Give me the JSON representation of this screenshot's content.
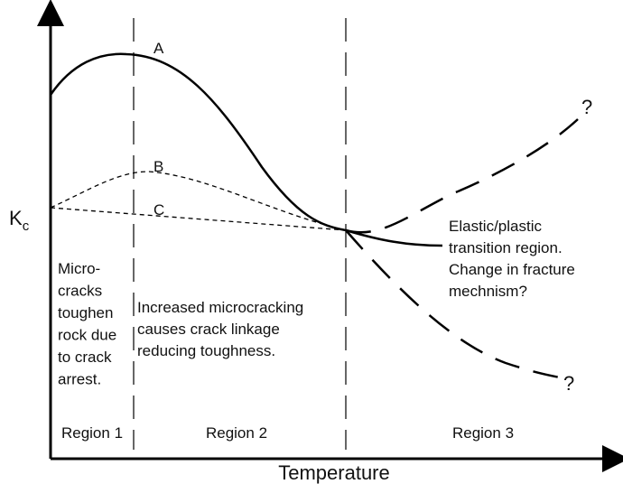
{
  "diagram": {
    "y_axis_label": {
      "main": "K",
      "subscript": "c"
    },
    "x_axis_label": "Temperature",
    "curve_labels": [
      "A",
      "B",
      "C"
    ],
    "unknowns": [
      "?",
      "?"
    ],
    "region_notes": {
      "region1": [
        "Micro-",
        "cracks",
        "toughen",
        "rock due",
        "to crack",
        "arrest."
      ],
      "region2": [
        "Increased microcracking",
        "causes crack linkage",
        "reducing toughness."
      ],
      "region3": [
        "Elastic/plastic",
        "transition region.",
        "Change in fracture",
        "mechnism?"
      ]
    },
    "regions": [
      "Region 1",
      "Region 2",
      "Region 3"
    ]
  }
}
